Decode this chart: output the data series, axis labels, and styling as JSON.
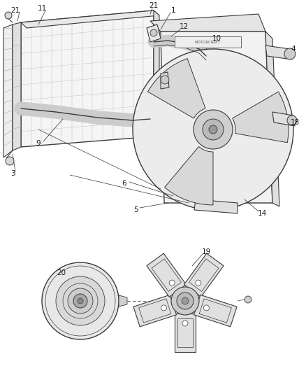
{
  "bg_color": "#ffffff",
  "line_color": "#3a3a3a",
  "label_color": "#1a1a1a",
  "label_fontsize": 7.5,
  "fig_width": 4.38,
  "fig_height": 5.33,
  "dpi": 100
}
